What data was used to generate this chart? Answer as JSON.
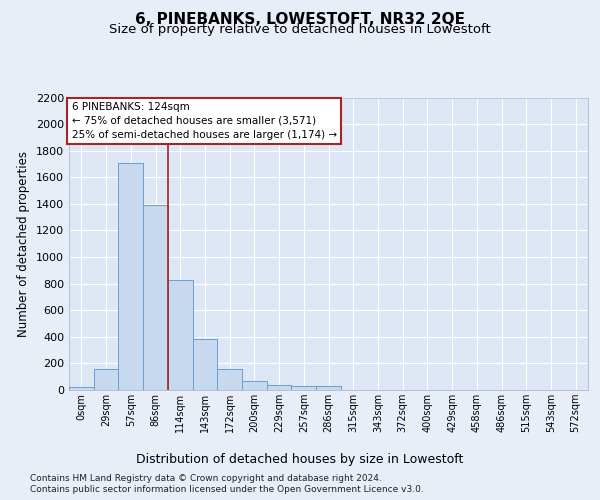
{
  "title": "6, PINEBANKS, LOWESTOFT, NR32 2QE",
  "subtitle": "Size of property relative to detached houses in Lowestoft",
  "xlabel": "Distribution of detached houses by size in Lowestoft",
  "ylabel": "Number of detached properties",
  "bar_labels": [
    "0sqm",
    "29sqm",
    "57sqm",
    "86sqm",
    "114sqm",
    "143sqm",
    "172sqm",
    "200sqm",
    "229sqm",
    "257sqm",
    "286sqm",
    "315sqm",
    "343sqm",
    "372sqm",
    "400sqm",
    "429sqm",
    "458sqm",
    "486sqm",
    "515sqm",
    "543sqm",
    "572sqm"
  ],
  "bar_values": [
    20,
    155,
    1710,
    1390,
    830,
    380,
    160,
    65,
    38,
    30,
    30,
    0,
    0,
    0,
    0,
    0,
    0,
    0,
    0,
    0,
    0
  ],
  "bar_color": "#c6d9ee",
  "bar_edge_color": "#6699cc",
  "property_line_x": 3.5,
  "annotation_box_text": "6 PINEBANKS: 124sqm\n← 75% of detached houses are smaller (3,571)\n25% of semi-detached houses are larger (1,174) →",
  "ylim": [
    0,
    2200
  ],
  "yticks": [
    0,
    200,
    400,
    600,
    800,
    1000,
    1200,
    1400,
    1600,
    1800,
    2000,
    2200
  ],
  "footer_line1": "Contains HM Land Registry data © Crown copyright and database right 2024.",
  "footer_line2": "Contains public sector information licensed under the Open Government Licence v3.0.",
  "background_color": "#e8eef8",
  "plot_background": "#dde6f4",
  "grid_color": "#ffffff",
  "red_color": "#aa2222",
  "title_fontsize": 11,
  "subtitle_fontsize": 9.5,
  "tick_fontsize": 7,
  "ylabel_fontsize": 8.5,
  "xlabel_fontsize": 9,
  "footer_fontsize": 6.5,
  "annot_fontsize": 7.5
}
